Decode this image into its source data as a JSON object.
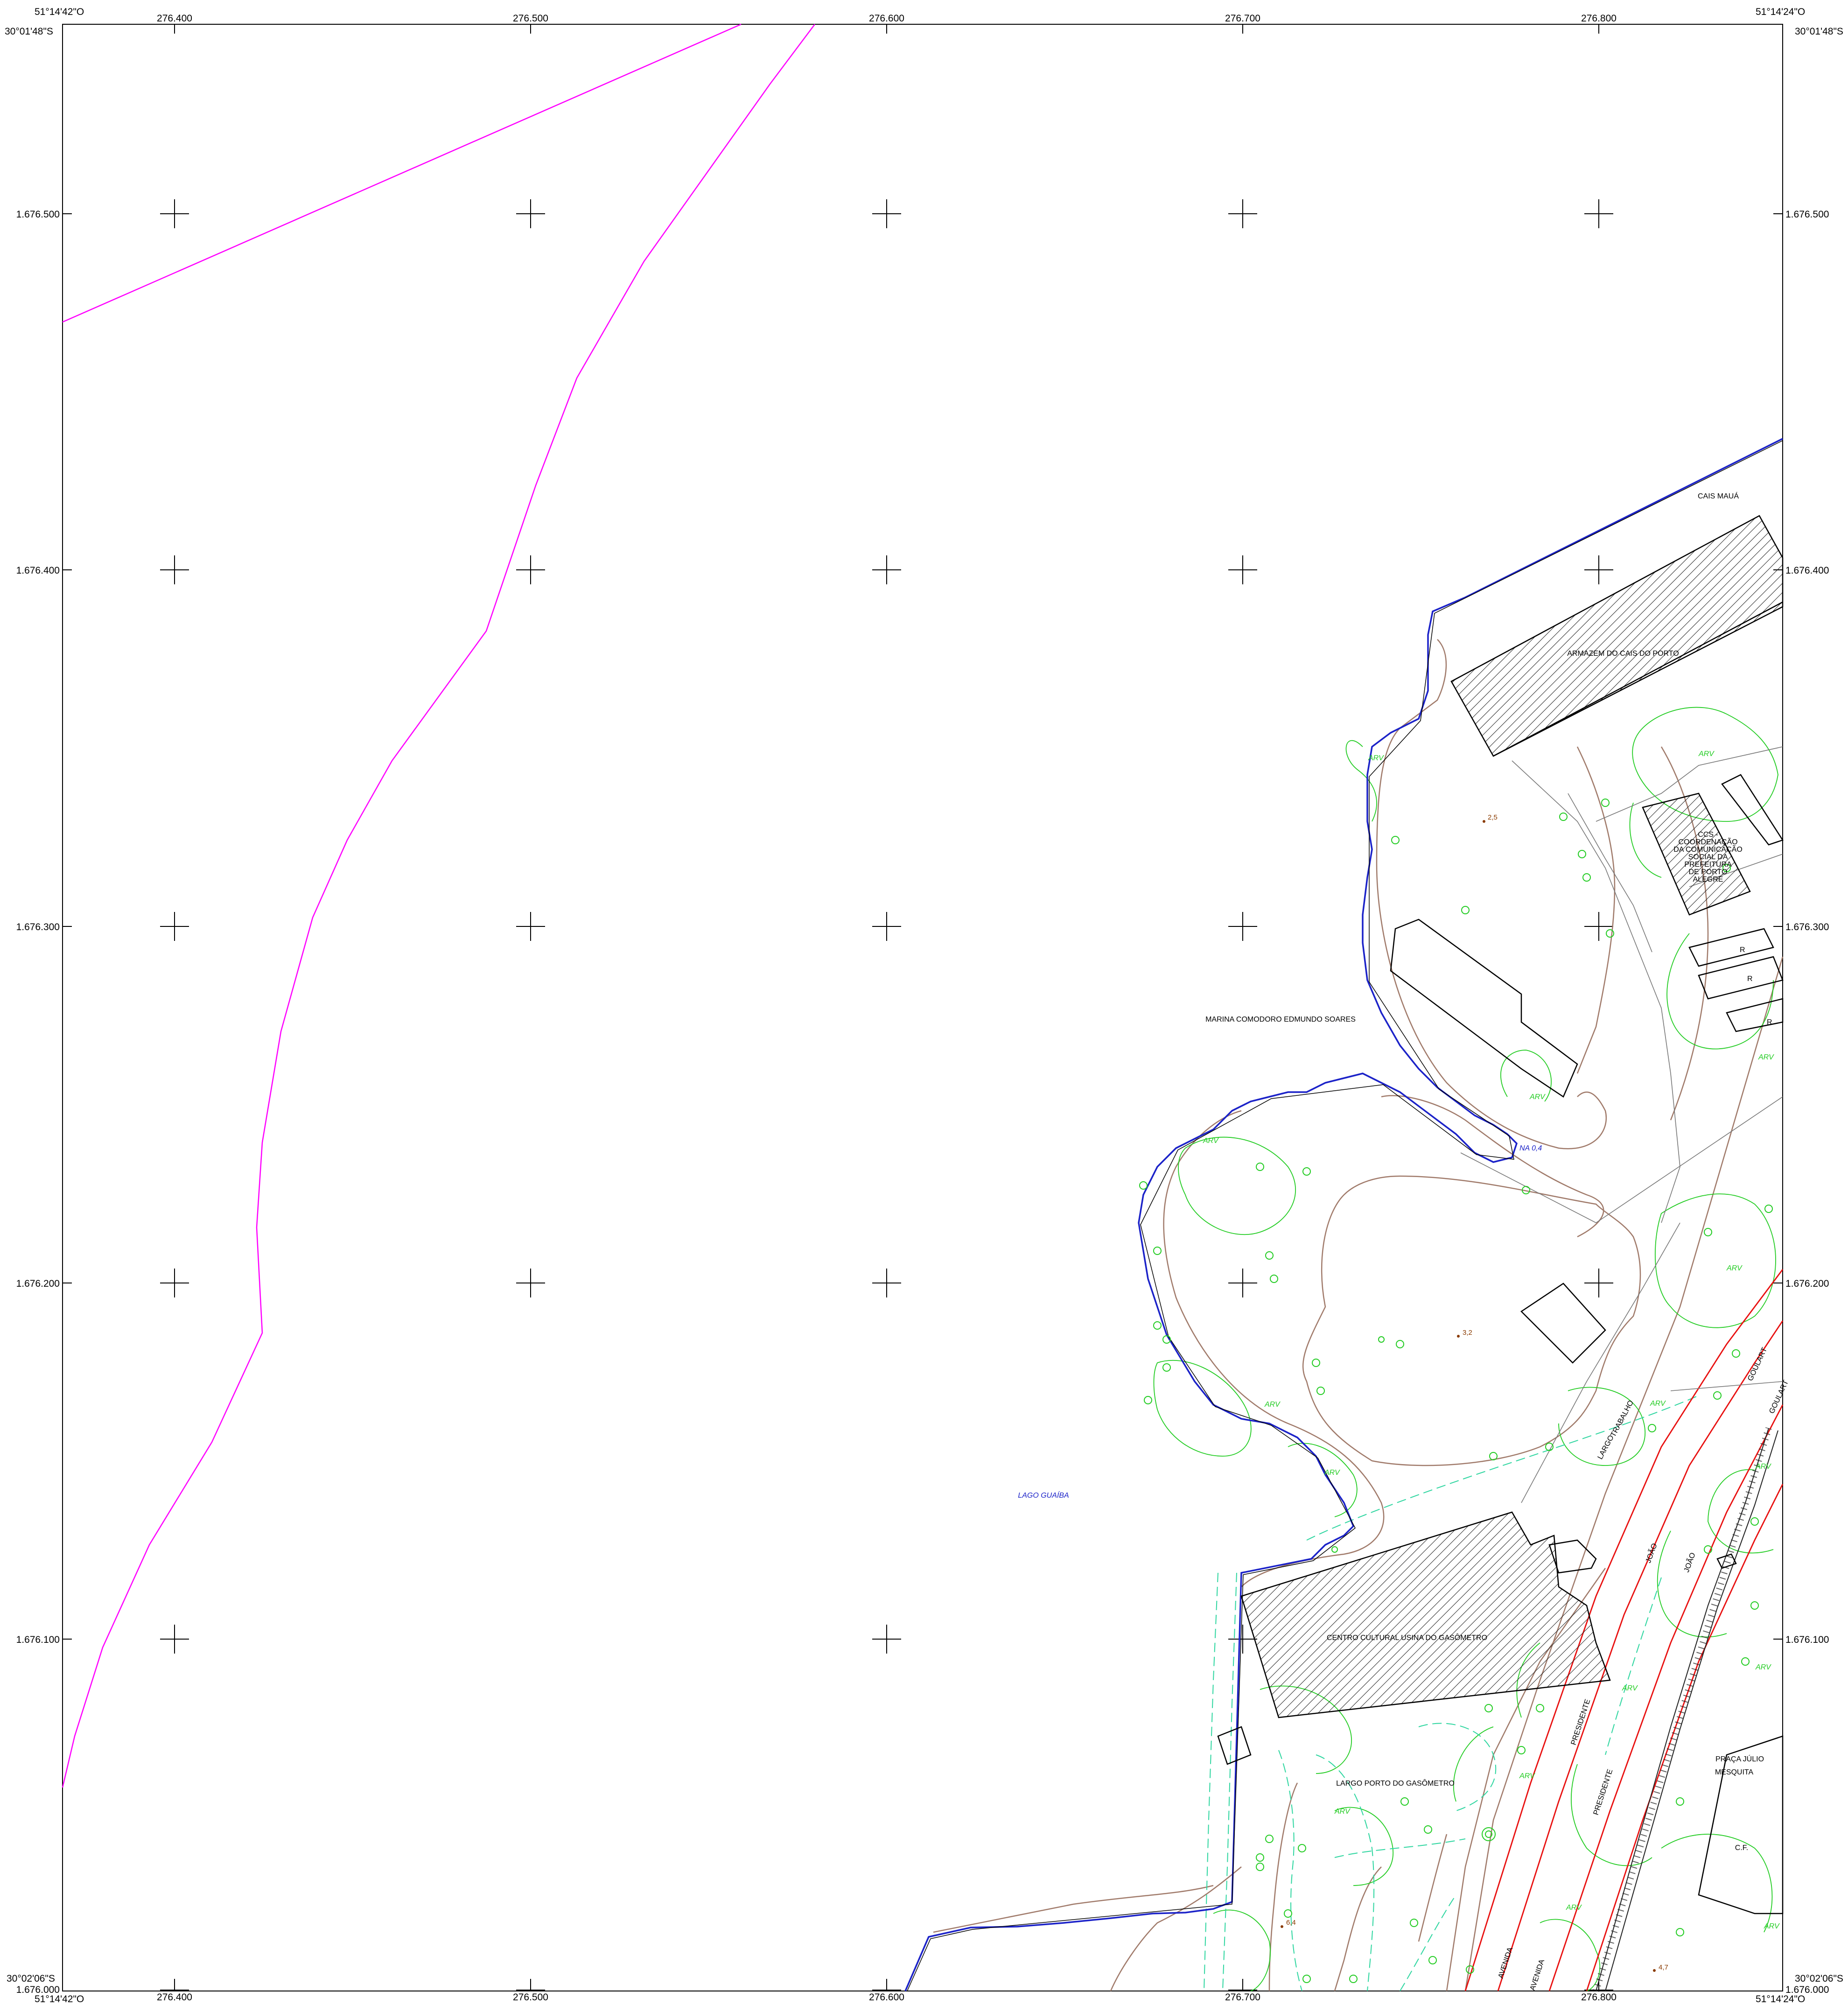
{
  "map": {
    "corners": {
      "top_left_lon": "51°14'42\"O",
      "top_left_lat": "30°01'48\"S",
      "top_right_lon": "51°14'24\"O",
      "top_right_lat": "30°01'48\"S",
      "bottom_left_lat": "30°02'06\"S",
      "bottom_left_lon": "51°14'42\"O",
      "bottom_right_lat": "30°02'06\"S",
      "bottom_right_lon": "51°14'24\"O"
    },
    "easting_labels": [
      "276.400",
      "276.500",
      "276.600",
      "276.700",
      "276.800"
    ],
    "northing_labels": [
      "1.676.500",
      "1.676.400",
      "1.676.300",
      "1.676.200",
      "1.676.100",
      "1.676.000"
    ],
    "places": {
      "cais_maua": "CAIS MAUÁ",
      "armazem": "ARMAZEM DO CAIS DO PORTO",
      "ccs_lines": [
        "CCS -",
        "COORDENAÇÃO",
        "DA COMUNICAÇÃO",
        "SOCIAL DA",
        "PREFEITURA",
        "DE PORTO",
        "ALEGRE"
      ],
      "marina": "MARINA COMODORO EDMUNDO SOARES",
      "lago": "LAGO GUAÍBA",
      "usina": "CENTRO CULTURAL USINA DO GASÔMETRO",
      "largo_porto": "LARGO PORTO DO GASÔMETRO",
      "largo_trabalho_1": "LARGO",
      "largo_trabalho_2": "TRABALHO",
      "goulart": "GOULART",
      "joao": "JOÃO",
      "presidente": "PRESIDENTE",
      "avenida": "AVENIDA",
      "praca_julio": "PRAÇA  JÚLIO",
      "mesquita": "MESQUITA",
      "cf": "C.F.",
      "r": "R",
      "na": "NA 0,4",
      "arv": "ARV"
    },
    "spot_heights": [
      "2,5",
      "3,2",
      "6,4",
      "4,7"
    ],
    "colors": {
      "boundary": "#ff00ff",
      "shoreline": "#1b22c8",
      "contour": "#a07a6a",
      "vegetation": "#22cc22",
      "sidewalk": "#2fd6a0",
      "road": "#e81010",
      "grid": "#000000"
    }
  }
}
